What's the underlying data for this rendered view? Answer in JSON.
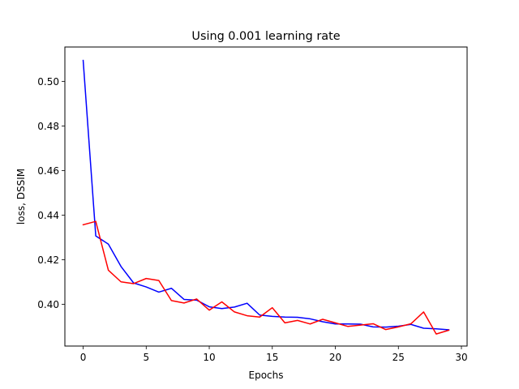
{
  "chart_data": {
    "type": "line",
    "title": "Using 0.001 learning rate",
    "xlabel": "Epochs",
    "ylabel": "loss, DSSIM",
    "xlim": [
      -1.45,
      30.45
    ],
    "ylim": [
      0.3813,
      0.5154
    ],
    "xticks": [
      0,
      5,
      10,
      15,
      20,
      25,
      30
    ],
    "yticks": [
      0.4,
      0.42,
      0.44,
      0.46,
      0.48,
      0.5
    ],
    "grid": false,
    "x": [
      0,
      1,
      2,
      3,
      4,
      5,
      6,
      7,
      8,
      9,
      10,
      11,
      12,
      13,
      14,
      15,
      16,
      17,
      18,
      19,
      20,
      21,
      22,
      23,
      24,
      25,
      26,
      27,
      28,
      29
    ],
    "series": [
      {
        "color": "#0000ff",
        "values": [
          0.5094,
          0.4307,
          0.427,
          0.417,
          0.4096,
          0.4078,
          0.4055,
          0.4072,
          0.4022,
          0.4019,
          0.3989,
          0.3981,
          0.3988,
          0.4005,
          0.3952,
          0.3946,
          0.3943,
          0.3942,
          0.3935,
          0.3922,
          0.3912,
          0.3912,
          0.3911,
          0.3899,
          0.3898,
          0.3902,
          0.391,
          0.3893,
          0.389,
          0.3886
        ]
      },
      {
        "color": "#ff0000",
        "values": [
          0.4357,
          0.4372,
          0.4153,
          0.4101,
          0.4093,
          0.4116,
          0.4107,
          0.4017,
          0.4006,
          0.4024,
          0.3974,
          0.4011,
          0.3966,
          0.3949,
          0.3943,
          0.3985,
          0.3917,
          0.3928,
          0.3912,
          0.3933,
          0.3917,
          0.3901,
          0.3907,
          0.3913,
          0.3887,
          0.3899,
          0.3913,
          0.3966,
          0.3867,
          0.3884
        ]
      }
    ]
  }
}
